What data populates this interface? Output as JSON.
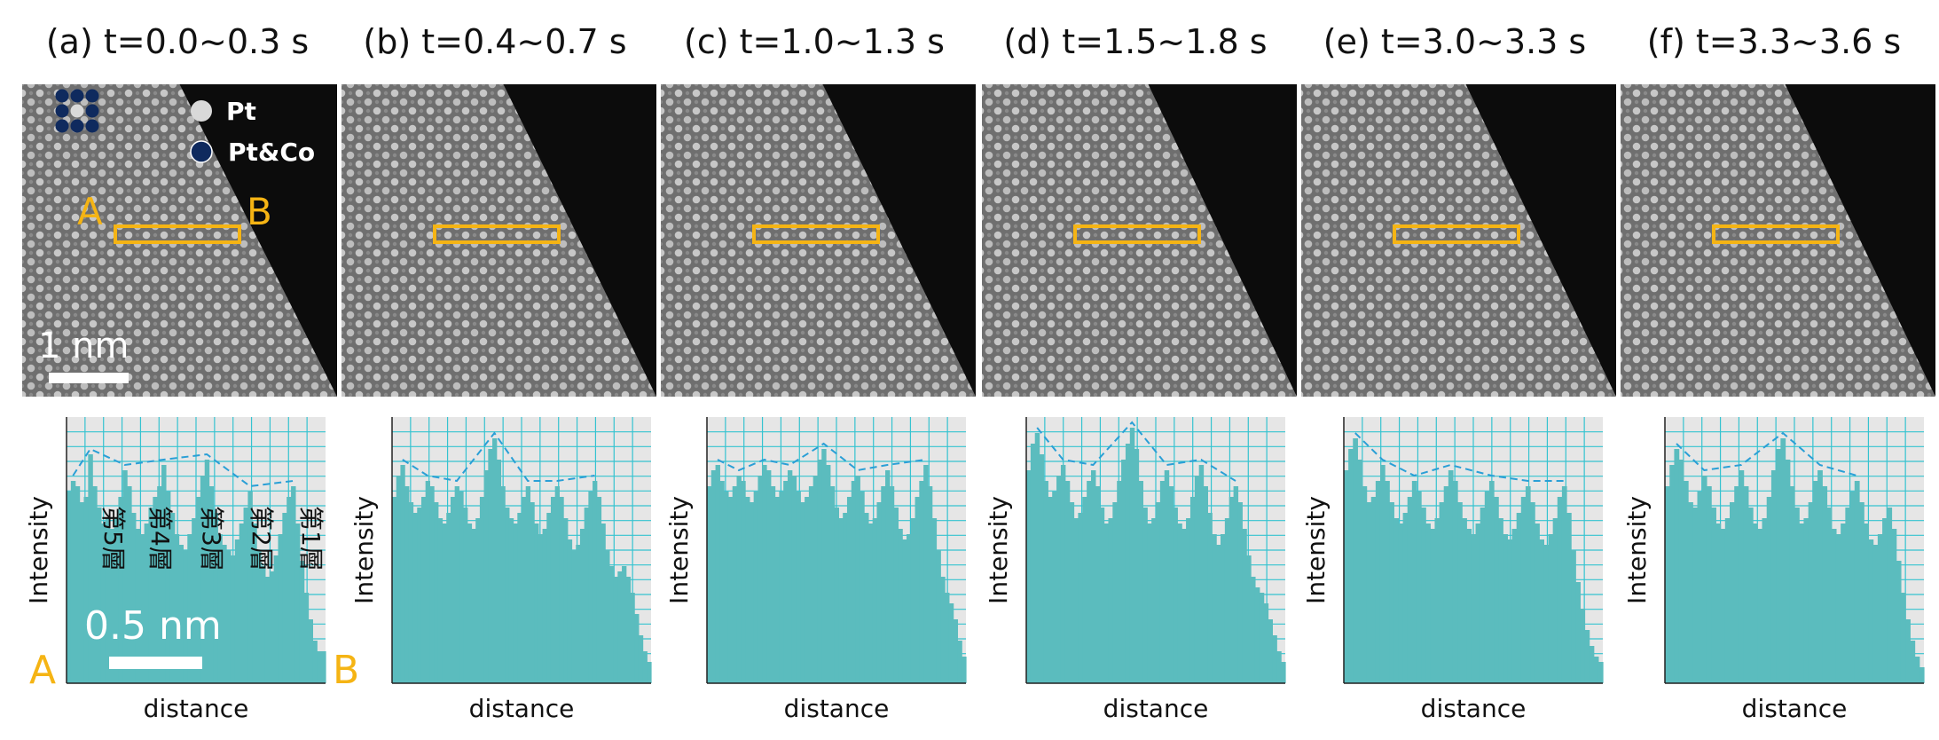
{
  "figure": {
    "panels": [
      {
        "label": "(a) t=0.0~0.3 s"
      },
      {
        "label": "(b) t=0.4~0.7 s"
      },
      {
        "label": "(c) t=1.0~1.3 s"
      },
      {
        "label": "(d) t=1.5~1.8 s"
      },
      {
        "label": "(e) t=3.0~3.3 s"
      },
      {
        "label": "(f) t=3.3~3.6 s"
      }
    ],
    "legend": [
      {
        "label": "Pt",
        "color": "#d9d9d9"
      },
      {
        "label": "Pt&Co",
        "color": "#0f2a5e"
      }
    ],
    "image_scale_bar": "1 nm",
    "profile_scale_bar": "0.5 nm",
    "endpoint_start": "A",
    "endpoint_end": "B",
    "layer_labels": [
      "第5層",
      "第4層",
      "第3層",
      "第2層",
      "第1層"
    ],
    "x_axis_label": "distance",
    "y_axis_label": "Intensity",
    "colors": {
      "bar_fill": "#5bbcbe",
      "box_outline": "#f5b414",
      "grid": "#35c3d0",
      "envelope": "#2a9fd6",
      "plot_bg": "#e6e6e6",
      "image_bg": "#0c0c0c"
    }
  },
  "chart_data": [
    {
      "type": "bar",
      "panel": "(a) t=0.0~0.3 s",
      "xlabel": "distance",
      "ylabel": "Intensity",
      "values": [
        72,
        76,
        74,
        68,
        70,
        86,
        74,
        66,
        60,
        62,
        58,
        62,
        70,
        80,
        74,
        64,
        58,
        56,
        60,
        66,
        70,
        74,
        82,
        72,
        64,
        56,
        52,
        50,
        56,
        62,
        70,
        78,
        84,
        74,
        64,
        56,
        52,
        50,
        48,
        54,
        60,
        66,
        72,
        60,
        50,
        44,
        40,
        42,
        48,
        56,
        64,
        70,
        74,
        60,
        46,
        34,
        24,
        16,
        12,
        12
      ]
    },
    {
      "type": "bar",
      "panel": "(b) t=0.4~0.7 s",
      "xlabel": "distance",
      "ylabel": "Intensity",
      "values": [
        70,
        78,
        82,
        74,
        68,
        64,
        66,
        70,
        76,
        74,
        68,
        62,
        60,
        64,
        70,
        74,
        72,
        66,
        60,
        58,
        62,
        70,
        80,
        88,
        92,
        84,
        74,
        66,
        62,
        60,
        64,
        70,
        74,
        68,
        60,
        56,
        58,
        64,
        70,
        74,
        70,
        62,
        54,
        50,
        52,
        58,
        66,
        72,
        76,
        70,
        60,
        50,
        44,
        40,
        42,
        44,
        40,
        34,
        26,
        18,
        12,
        8
      ]
    },
    {
      "type": "bar",
      "panel": "(c) t=1.0~1.3 s",
      "xlabel": "distance",
      "ylabel": "Intensity",
      "values": [
        74,
        80,
        82,
        76,
        72,
        70,
        74,
        78,
        76,
        70,
        68,
        72,
        78,
        82,
        80,
        74,
        70,
        72,
        76,
        80,
        78,
        72,
        68,
        70,
        74,
        78,
        84,
        88,
        82,
        74,
        66,
        62,
        64,
        70,
        76,
        78,
        72,
        64,
        60,
        62,
        68,
        74,
        80,
        74,
        66,
        58,
        54,
        56,
        62,
        70,
        76,
        82,
        74,
        62,
        50,
        40,
        34,
        30,
        24,
        16,
        10
      ]
    },
    {
      "type": "bar",
      "panel": "(d) t=1.5~1.8 s",
      "xlabel": "distance",
      "ylabel": "Intensity",
      "values": [
        80,
        90,
        94,
        86,
        76,
        70,
        72,
        78,
        82,
        76,
        68,
        62,
        64,
        70,
        76,
        80,
        74,
        66,
        60,
        62,
        68,
        76,
        84,
        90,
        96,
        88,
        76,
        66,
        60,
        62,
        68,
        76,
        80,
        74,
        66,
        60,
        58,
        62,
        70,
        78,
        82,
        74,
        64,
        56,
        52,
        56,
        62,
        70,
        74,
        68,
        58,
        48,
        40,
        36,
        34,
        30,
        24,
        18,
        12,
        8
      ]
    },
    {
      "type": "bar",
      "panel": "(e) t=3.0~3.3 s",
      "xlabel": "distance",
      "ylabel": "Intensity",
      "values": [
        80,
        88,
        92,
        84,
        74,
        68,
        70,
        76,
        82,
        76,
        68,
        62,
        60,
        64,
        70,
        76,
        72,
        66,
        60,
        58,
        62,
        68,
        74,
        80,
        76,
        68,
        62,
        58,
        56,
        60,
        66,
        72,
        76,
        70,
        62,
        56,
        54,
        58,
        64,
        70,
        74,
        68,
        60,
        54,
        52,
        56,
        62,
        70,
        74,
        64,
        50,
        38,
        28,
        20,
        14,
        10,
        8
      ]
    },
    {
      "type": "bar",
      "panel": "(f) t=3.3~3.6 s",
      "xlabel": "distance",
      "ylabel": "Intensity",
      "values": [
        74,
        82,
        88,
        84,
        76,
        68,
        66,
        72,
        78,
        74,
        66,
        60,
        58,
        62,
        68,
        74,
        80,
        74,
        66,
        60,
        58,
        62,
        70,
        80,
        88,
        92,
        84,
        74,
        66,
        60,
        62,
        68,
        76,
        80,
        74,
        66,
        58,
        56,
        60,
        66,
        72,
        76,
        68,
        60,
        54,
        52,
        56,
        62,
        66,
        58,
        46,
        34,
        24,
        16,
        10,
        6
      ]
    }
  ]
}
